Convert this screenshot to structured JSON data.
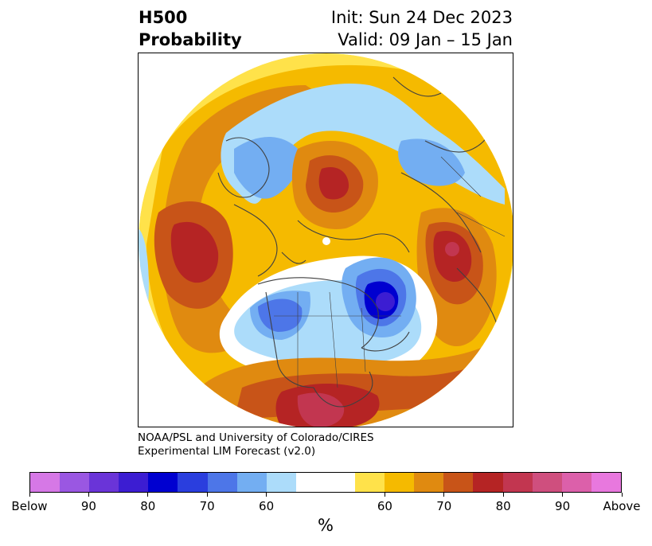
{
  "header": {
    "title_line1": "H500",
    "title_line2": "Probability",
    "init_text": "Init: Sun 24 Dec 2023",
    "valid_text": "Valid: 09 Jan – 15 Jan"
  },
  "credit": {
    "line1": "NOAA/PSL and University of Colorado/CIRES",
    "line2": "Experimental LIM Forecast (v2.0)"
  },
  "colorbar": {
    "unit": "%",
    "segments": [
      {
        "side": "below",
        "color": "#d678e6"
      },
      {
        "side": "below",
        "color": "#9a57e2"
      },
      {
        "side": "below",
        "color": "#6a34d8"
      },
      {
        "side": "below",
        "color": "#3c1dd2"
      },
      {
        "side": "below",
        "color": "#0000d0"
      },
      {
        "side": "below",
        "color": "#2a3ede"
      },
      {
        "side": "below",
        "color": "#4d76e8"
      },
      {
        "side": "below",
        "color": "#73aef2"
      },
      {
        "side": "below",
        "color": "#acdcfa"
      },
      {
        "side": "neutral",
        "color": "#ffffff"
      },
      {
        "side": "above",
        "color": "#ffe24a"
      },
      {
        "side": "above",
        "color": "#f5ba00"
      },
      {
        "side": "above",
        "color": "#e08a10"
      },
      {
        "side": "above",
        "color": "#c85418"
      },
      {
        "side": "above",
        "color": "#b52424"
      },
      {
        "side": "above",
        "color": "#c23650"
      },
      {
        "side": "above",
        "color": "#cf4f7e"
      },
      {
        "side": "above",
        "color": "#dc60aa"
      },
      {
        "side": "above",
        "color": "#e878de"
      }
    ],
    "tick_labels": [
      "Below",
      "90",
      "80",
      "70",
      "60",
      "60",
      "70",
      "80",
      "90",
      "Above"
    ]
  },
  "colors": {
    "frame": "#000000",
    "coastline": "#404040"
  }
}
